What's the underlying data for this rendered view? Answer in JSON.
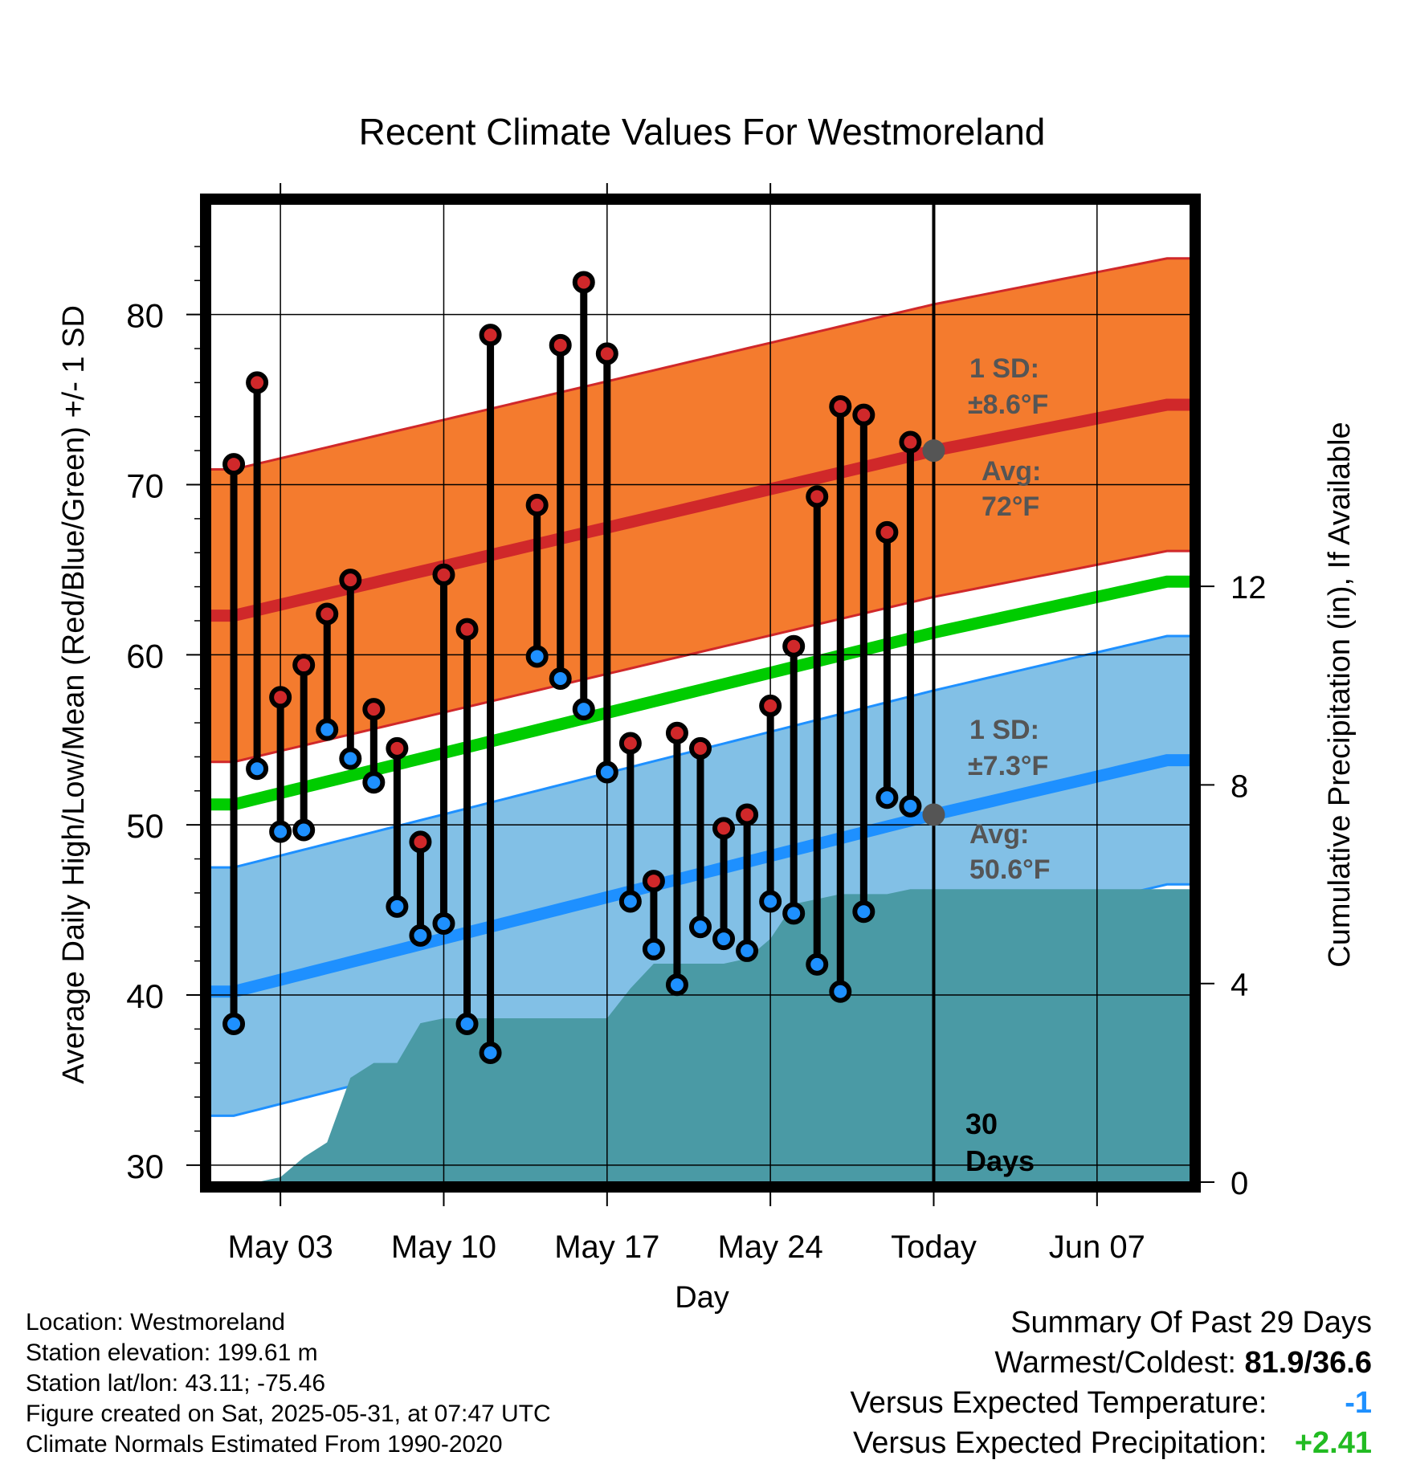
{
  "chart_data": {
    "type": "line",
    "title": "Recent Climate Values For Westmoreland",
    "xlabel": "Day",
    "ylabel": "Average Daily High/Low/Mean (Red/Blue/Green) +/- 1 SD",
    "y2label": "Cumulative Precipitation (in), If Available",
    "x_range_days": [
      -31,
      11
    ],
    "ylim": [
      29,
      86.5
    ],
    "y2lim": [
      0,
      19.7
    ],
    "yticks": [
      30,
      40,
      50,
      60,
      70,
      80
    ],
    "y2ticks": [
      0,
      4,
      8,
      12
    ],
    "xtick_days": [
      -28,
      -21,
      -14,
      -7,
      0,
      7
    ],
    "xtick_labels": [
      "May 03",
      "May 10",
      "May 17",
      "May 24",
      "Today",
      "Jun 07"
    ],
    "grid": true,
    "colors": {
      "high_band": "#f47b2e",
      "high_band_edge": "#d0282a",
      "avg_high": "#d0282a",
      "low_band": "#82c0e6",
      "low_band_edge": "#1e90ff",
      "avg_low": "#1e90ff",
      "avg_mean": "#00cc00",
      "precip": "#4a9aa5",
      "high_marker": "#d0282a",
      "low_marker": "#1e90ff",
      "today_marker": "#555555",
      "annotation_text": "#555555"
    },
    "normals": {
      "avg_high": [
        {
          "day": -30,
          "value": 62.3
        },
        {
          "day": 0,
          "value": 72
        },
        {
          "day": 10,
          "value": 74.7
        }
      ],
      "avg_high_sd": 8.6,
      "avg_low": [
        {
          "day": -30,
          "value": 40.2
        },
        {
          "day": 0,
          "value": 50.6
        },
        {
          "day": 10,
          "value": 53.8
        }
      ],
      "avg_low_sd": 7.3,
      "avg_mean": [
        {
          "day": -30,
          "value": 51.2
        },
        {
          "day": 0,
          "value": 61.3
        },
        {
          "day": 10,
          "value": 64.3
        }
      ]
    },
    "daily_high": [
      71.2,
      76.0,
      57.5,
      59.4,
      62.4,
      64.4,
      56.8,
      54.5,
      49.0,
      64.7,
      61.5,
      78.8,
      null,
      68.8,
      78.2,
      81.9,
      77.7,
      54.8,
      46.7,
      55.4,
      54.5,
      49.8,
      50.6,
      57.0,
      60.5,
      69.3,
      74.6,
      74.1,
      67.2,
      72.5
    ],
    "daily_low": [
      38.3,
      53.3,
      49.6,
      49.7,
      55.6,
      53.9,
      52.5,
      45.2,
      43.5,
      44.2,
      38.3,
      36.6,
      null,
      59.9,
      58.6,
      56.8,
      53.1,
      45.5,
      42.7,
      40.6,
      44.0,
      43.3,
      42.6,
      45.5,
      44.8,
      41.8,
      40.2,
      44.9,
      51.6,
      51.1
    ],
    "cumulative_precip": [
      {
        "day": -29,
        "value": 0.0
      },
      {
        "day": -28,
        "value": 0.1
      },
      {
        "day": -27,
        "value": 0.5
      },
      {
        "day": -26,
        "value": 0.8
      },
      {
        "day": -25,
        "value": 2.1
      },
      {
        "day": -24,
        "value": 2.4
      },
      {
        "day": -23,
        "value": 2.4
      },
      {
        "day": -22,
        "value": 3.2
      },
      {
        "day": -21,
        "value": 3.3
      },
      {
        "day": -20,
        "value": 3.3
      },
      {
        "day": -19,
        "value": 3.3
      },
      {
        "day": -18,
        "value": 3.3
      },
      {
        "day": -17,
        "value": 3.3
      },
      {
        "day": -16,
        "value": 3.3
      },
      {
        "day": -15,
        "value": 3.3
      },
      {
        "day": -14,
        "value": 3.3
      },
      {
        "day": -13,
        "value": 3.9
      },
      {
        "day": -12,
        "value": 4.4
      },
      {
        "day": -11,
        "value": 4.4
      },
      {
        "day": -10,
        "value": 4.4
      },
      {
        "day": -9,
        "value": 4.4
      },
      {
        "day": -8,
        "value": 4.5
      },
      {
        "day": -7,
        "value": 4.9
      },
      {
        "day": -6,
        "value": 5.6
      },
      {
        "day": -5,
        "value": 5.7
      },
      {
        "day": -4,
        "value": 5.8
      },
      {
        "day": -3,
        "value": 5.8
      },
      {
        "day": -2,
        "value": 5.8
      },
      {
        "day": -1,
        "value": 5.9
      },
      {
        "day": 0,
        "value": 5.9
      },
      {
        "day": 10,
        "value": 5.9
      }
    ],
    "annotations": {
      "high_sd_label": "1 SD:",
      "high_sd_value": "±8.6°F",
      "high_avg_label": "Avg:",
      "high_avg_value": "72°F",
      "low_sd_label": "1 SD:",
      "low_sd_value": "±7.3°F",
      "low_avg_label": "Avg:",
      "low_avg_value": "50.6°F",
      "days_number": "30",
      "days_label": "Days"
    }
  },
  "info": {
    "location": "Location: Westmoreland",
    "elevation": "Station elevation: 199.61 m",
    "latlon": "Station lat/lon: 43.11; -75.46",
    "created": "Figure created on Sat, 2025-05-31, at 07:47 UTC",
    "normals": "Climate Normals Estimated From 1990-2020"
  },
  "summary": {
    "heading": "Summary Of Past 29 Days",
    "warm_cold_label": "Warmest/Coldest:",
    "warm_cold_value": "81.9/36.6",
    "temp_label": "Versus Expected Temperature:",
    "temp_value": "-1",
    "temp_color": "#1e90ff",
    "precip_label": "Versus Expected Precipitation:",
    "precip_value": "+2.41",
    "precip_color": "#22bb22"
  }
}
